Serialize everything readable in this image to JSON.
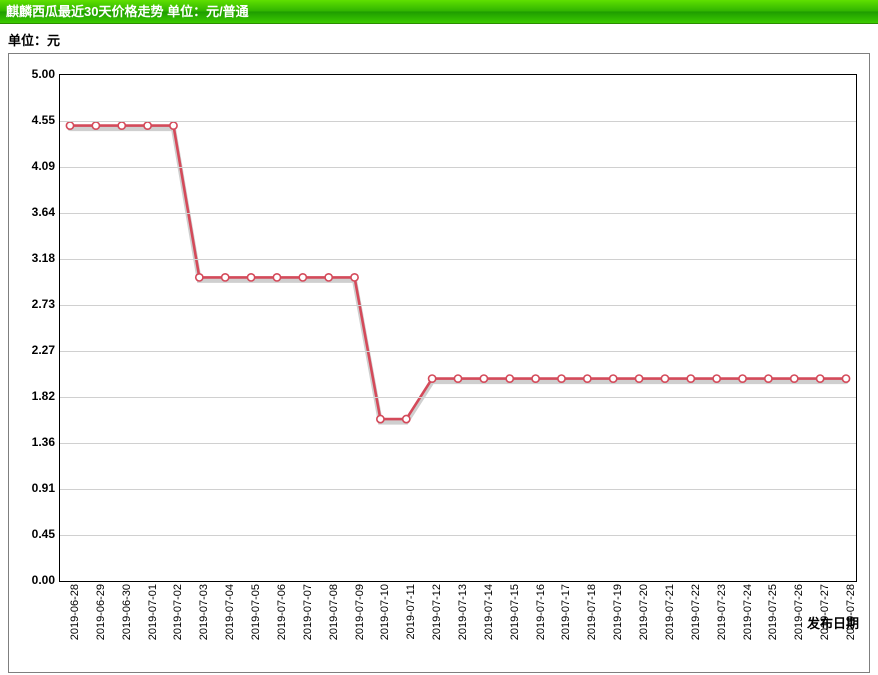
{
  "header_title": "麒麟西瓜最近30天价格走势  单位：元/普通",
  "subheader": "单位：元",
  "xlabel": "发布日期",
  "chart": {
    "type": "line",
    "ylim": [
      0,
      5.0
    ],
    "yticks": [
      0.0,
      0.45,
      0.91,
      1.36,
      1.82,
      2.27,
      2.73,
      3.18,
      3.64,
      4.09,
      4.55,
      5.0
    ],
    "ytick_labels": [
      "0.00",
      "0.45",
      "0.91",
      "1.36",
      "1.82",
      "2.27",
      "2.73",
      "3.18",
      "3.64",
      "4.09",
      "4.55",
      "5.00"
    ],
    "categories": [
      "2019-06-28",
      "2019-06-29",
      "2019-06-30",
      "2019-07-01",
      "2019-07-02",
      "2019-07-03",
      "2019-07-04",
      "2019-07-05",
      "2019-07-06",
      "2019-07-07",
      "2019-07-08",
      "2019-07-09",
      "2019-07-10",
      "2019-07-11",
      "2019-07-12",
      "2019-07-13",
      "2019-07-14",
      "2019-07-15",
      "2019-07-16",
      "2019-07-17",
      "2019-07-18",
      "2019-07-19",
      "2019-07-20",
      "2019-07-21",
      "2019-07-22",
      "2019-07-23",
      "2019-07-24",
      "2019-07-25",
      "2019-07-26",
      "2019-07-27",
      "2019-07-28"
    ],
    "values": [
      4.5,
      4.5,
      4.5,
      4.5,
      4.5,
      3.0,
      3.0,
      3.0,
      3.0,
      3.0,
      3.0,
      3.0,
      1.6,
      1.6,
      2.0,
      2.0,
      2.0,
      2.0,
      2.0,
      2.0,
      2.0,
      2.0,
      2.0,
      2.0,
      2.0,
      2.0,
      2.0,
      2.0,
      2.0,
      2.0,
      2.0
    ],
    "line_color": "#d44a5a",
    "marker_radius": 3.6,
    "grid_color": "#d0d0d0",
    "background_color": "#ffffff",
    "tick_fontsize": 12,
    "label_fontsize": 13
  }
}
